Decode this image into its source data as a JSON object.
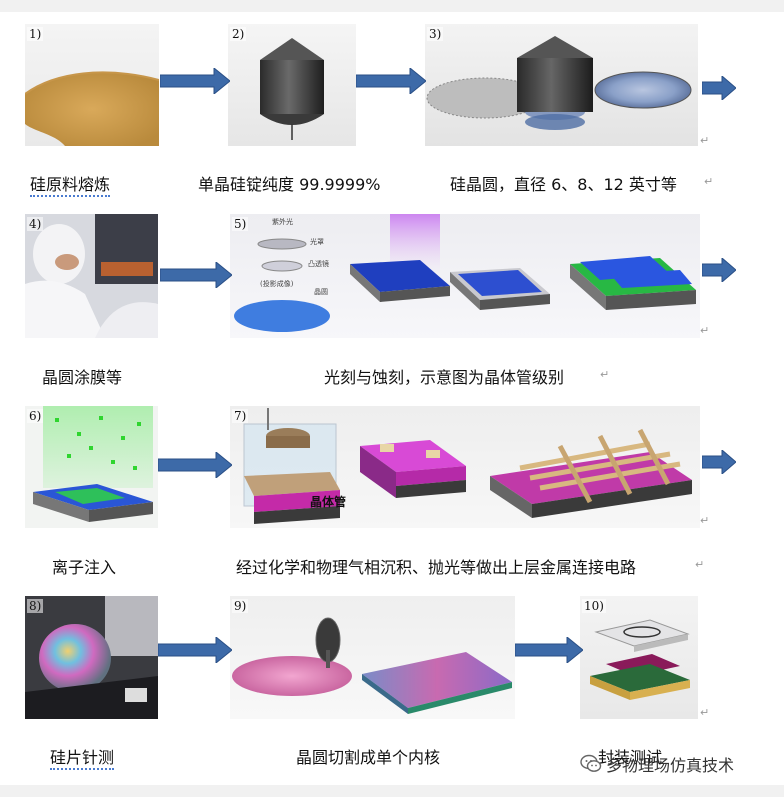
{
  "steps": [
    {
      "num": "1)",
      "caption": "硅原料熔炼"
    },
    {
      "num": "2)",
      "caption": "单晶硅锭纯度 99.9999%"
    },
    {
      "num": "3)",
      "caption": "硅晶圆，直径 6、8、12 英寸等"
    },
    {
      "num": "4)",
      "caption": "晶圆涂膜等"
    },
    {
      "num": "5)",
      "caption": "光刻与蚀刻，示意图为晶体管级别"
    },
    {
      "num": "6)",
      "caption": "离子注入"
    },
    {
      "num": "7)",
      "caption": "经过化学和物理气相沉积、抛光等做出上层金属连接电路"
    },
    {
      "num": "8)",
      "caption": "硅片针测"
    },
    {
      "num": "9)",
      "caption": "晶圆切割成单个内核"
    },
    {
      "num": "10)",
      "caption": "封装测试"
    }
  ],
  "labels": {
    "uv": "紫外光",
    "mask": "光罩",
    "lens": "凸透镜",
    "proj": "(投影成像)",
    "wafer": "晶圆",
    "transistor": "晶体管"
  },
  "return_mark": "↵",
  "watermark": {
    "text": "多物理场仿真技术",
    "icon": "wechat-icon"
  },
  "colors": {
    "arrow": "#3d6aa8",
    "arrow_edge": "#2a4f86"
  }
}
